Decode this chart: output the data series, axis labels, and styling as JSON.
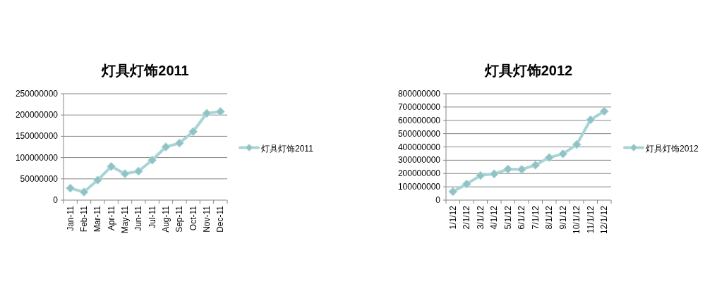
{
  "chart_data": [
    {
      "type": "line",
      "title": "灯具灯饰2011",
      "categories": [
        "Jan-11",
        "Feb-11",
        "Mar-11",
        "Apr-11",
        "May-11",
        "Jun-11",
        "Jul-11",
        "Aug-11",
        "Sep-11",
        "Oct-11",
        "Nov-11",
        "Dec-11"
      ],
      "series": [
        {
          "name": "灯具灯饰2011",
          "color": "#a8d4d6",
          "values": [
            28000000,
            19000000,
            47000000,
            79000000,
            62000000,
            68000000,
            94000000,
            125000000,
            134000000,
            161000000,
            204000000,
            208000000
          ]
        }
      ],
      "ylim": [
        0,
        250000000
      ],
      "yticks": [
        0,
        50000000,
        100000000,
        150000000,
        200000000,
        250000000
      ],
      "grid": "y",
      "legend": "right",
      "marker": "diamond"
    },
    {
      "type": "line",
      "title": "灯具灯饰2012",
      "categories": [
        "1/1/12",
        "2/1/12",
        "3/1/12",
        "4/1/12",
        "5/1/12",
        "6/1/12",
        "7/1/12",
        "8/1/12",
        "9/1/12",
        "10/1/12",
        "11/1/12",
        "12/1/12"
      ],
      "series": [
        {
          "name": "灯具灯饰2012",
          "color": "#a8d4d6",
          "values": [
            64000000,
            121000000,
            185000000,
            197000000,
            233000000,
            231000000,
            263000000,
            320000000,
            348000000,
            418000000,
            604000000,
            668000000
          ]
        }
      ],
      "ylim": [
        0,
        800000000
      ],
      "yticks": [
        0,
        100000000,
        200000000,
        300000000,
        400000000,
        500000000,
        600000000,
        700000000,
        800000000
      ],
      "grid": "y",
      "legend": "right",
      "marker": "diamond"
    }
  ]
}
